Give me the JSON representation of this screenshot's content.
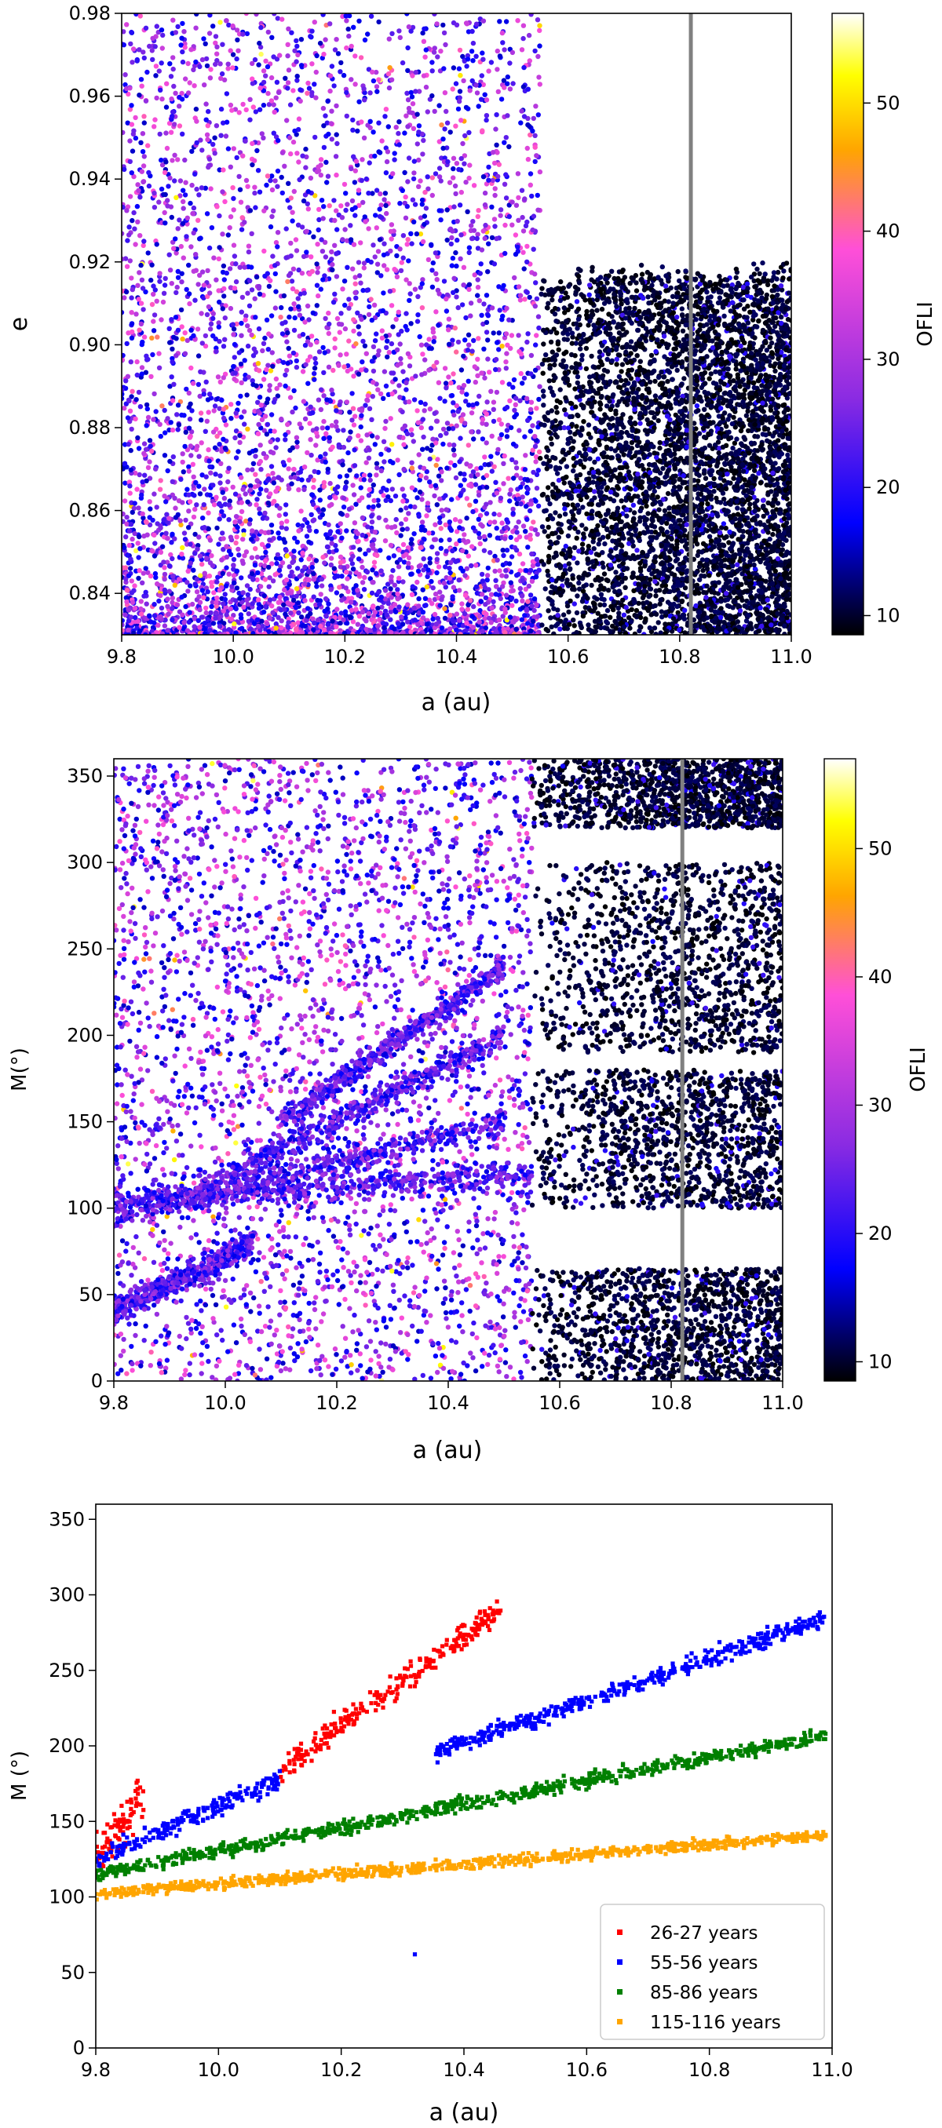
{
  "figure": {
    "panels": [
      "top",
      "middle",
      "bottom"
    ]
  },
  "chart_data": [
    {
      "type": "scatter",
      "panel": "top",
      "xlabel": "a (au)",
      "ylabel": "e",
      "xlim": [
        9.8,
        11.0
      ],
      "ylim": [
        0.83,
        0.98
      ],
      "xticks": [
        "9.8",
        "10.0",
        "10.2",
        "10.4",
        "10.6",
        "10.8",
        "11.0"
      ],
      "yticks": [
        "0.84",
        "0.86",
        "0.88",
        "0.90",
        "0.92",
        "0.94",
        "0.96",
        "0.98"
      ],
      "vline_x": 10.82,
      "vline_color": "#808080",
      "colorbar": {
        "label": "OFLI",
        "range": [
          8.5,
          57
        ],
        "ticks": [
          "10",
          "20",
          "30",
          "40",
          "50"
        ],
        "colormap": "gnuplot2",
        "stops": [
          "#000000",
          "#0000ff",
          "#8a2be2",
          "#ff4fd8",
          "#ffa500",
          "#ffff00",
          "#ffffff"
        ]
      },
      "regions": [
        {
          "description": "chaotic",
          "x": [
            9.8,
            10.55
          ],
          "y": [
            0.83,
            0.98
          ],
          "ofli_range": [
            15,
            40
          ],
          "density": "dense near low e, sparse at high e"
        },
        {
          "description": "regular",
          "x": [
            10.55,
            11.0
          ],
          "y": [
            0.83,
            0.92
          ],
          "ofli_range": [
            8.5,
            12
          ]
        }
      ]
    },
    {
      "type": "scatter",
      "panel": "middle",
      "xlabel": "a (au)",
      "ylabel": "M(°)",
      "xlim": [
        9.8,
        11.0
      ],
      "ylim": [
        0,
        360
      ],
      "xticks": [
        "9.8",
        "10.0",
        "10.2",
        "10.4",
        "10.6",
        "10.8",
        "11.0"
      ],
      "yticks": [
        "0",
        "50",
        "100",
        "150",
        "200",
        "250",
        "300",
        "350"
      ],
      "vline_x": 10.82,
      "vline_color": "#808080",
      "colorbar": {
        "label": "OFLI",
        "range": [
          8.5,
          57
        ],
        "ticks": [
          "10",
          "20",
          "30",
          "40",
          "50"
        ],
        "colormap": "gnuplot2"
      },
      "regions": [
        {
          "description": "chaotic with diagonal bands",
          "x": [
            9.8,
            10.55
          ],
          "y": [
            0,
            360
          ],
          "ofli_range": [
            15,
            40
          ]
        },
        {
          "description": "regular lobes",
          "x": [
            10.55,
            11.0
          ],
          "y_bands": [
            [
              0,
              65
            ],
            [
              100,
              180
            ],
            [
              190,
              300
            ],
            [
              320,
              360
            ]
          ],
          "ofli_range": [
            8.5,
            12
          ]
        }
      ]
    },
    {
      "type": "scatter",
      "panel": "bottom",
      "xlabel": "a (au)",
      "ylabel": "M (°)",
      "xlim": [
        9.8,
        11.0
      ],
      "ylim": [
        0,
        360
      ],
      "xticks": [
        "9.8",
        "10.0",
        "10.2",
        "10.4",
        "10.6",
        "10.8",
        "11.0"
      ],
      "yticks": [
        "0",
        "50",
        "100",
        "150",
        "200",
        "250",
        "300",
        "350"
      ],
      "legend_position": "lower-right",
      "series": [
        {
          "name": "26-27 years",
          "color": "#ff0000",
          "segments": [
            {
              "x": [
                9.8,
                9.88
              ],
              "y": [
                125,
                168
              ]
            },
            {
              "x": [
                10.1,
                10.46
              ],
              "y": [
                185,
                290
              ]
            }
          ]
        },
        {
          "name": "55-56 years",
          "color": "#0000ff",
          "segments": [
            {
              "x": [
                9.8,
                10.1
              ],
              "y": [
                125,
                178
              ]
            },
            {
              "x": [
                10.35,
                10.99
              ],
              "y": [
                195,
                285
              ]
            }
          ],
          "outlier": {
            "x": 10.32,
            "y": 62
          }
        },
        {
          "name": "85-86 years",
          "color": "#008000",
          "segments": [
            {
              "x": [
                9.8,
                10.99
              ],
              "y": [
                115,
                207
              ]
            }
          ]
        },
        {
          "name": "115-116 years",
          "color": "#ffa500",
          "segments": [
            {
              "x": [
                9.8,
                10.99
              ],
              "y": [
                102,
                141
              ]
            }
          ]
        }
      ]
    }
  ]
}
